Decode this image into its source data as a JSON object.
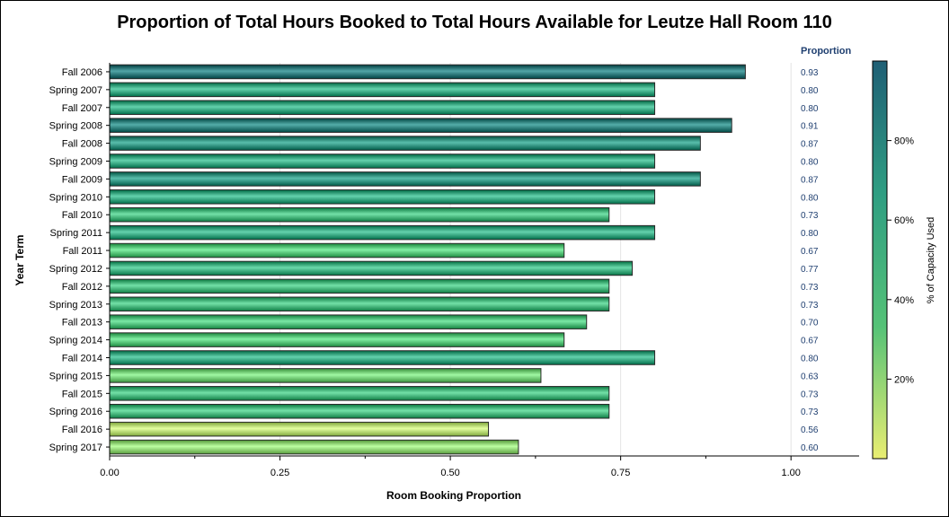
{
  "chart_data": {
    "type": "bar",
    "orientation": "horizontal",
    "title": "Proportion of Total Hours Booked to Total Hours Available for Leutze Hall Room 110",
    "xlabel": "Room Booking Proportion",
    "ylabel": "Year Term",
    "xlim": [
      0,
      1.1
    ],
    "xticks": [
      0,
      0.25,
      0.5,
      0.75,
      1.0
    ],
    "xtick_labels": [
      "0.00",
      "0.25",
      "0.50",
      "0.75",
      "1.00"
    ],
    "value_column_header": "Proportion",
    "colorbar_label": "% of Capacity Used",
    "colorbar_ticks": [
      "20%",
      "40%",
      "60%",
      "80%"
    ],
    "colorbar_tick_values": [
      20,
      40,
      60,
      80
    ],
    "colorbar_range": [
      0,
      100
    ],
    "colorbar_colors": [
      "#e9ee72",
      "#55c277",
      "#2f9e82",
      "#1f5f75"
    ],
    "grid": "vertical",
    "categories": [
      "Fall 2006",
      "Spring 2007",
      "Fall 2007",
      "Spring 2008",
      "Fall 2008",
      "Spring 2009",
      "Fall 2009",
      "Spring 2010",
      "Fall 2010",
      "Spring 2011",
      "Fall 2011",
      "Spring 2012",
      "Fall 2012",
      "Spring 2013",
      "Fall 2013",
      "Spring 2014",
      "Fall 2014",
      "Spring 2015",
      "Fall 2015",
      "Spring 2016",
      "Fall 2016",
      "Spring 2017"
    ],
    "values": [
      0.933,
      0.8,
      0.8,
      0.913,
      0.867,
      0.8,
      0.867,
      0.8,
      0.733,
      0.8,
      0.667,
      0.767,
      0.733,
      0.733,
      0.7,
      0.667,
      0.8,
      0.633,
      0.733,
      0.733,
      0.556,
      0.6
    ],
    "value_labels": [
      "0.93",
      "0.80",
      "0.80",
      "0.91",
      "0.87",
      "0.80",
      "0.87",
      "0.80",
      "0.73",
      "0.80",
      "0.67",
      "0.77",
      "0.73",
      "0.73",
      "0.70",
      "0.67",
      "0.80",
      "0.63",
      "0.73",
      "0.73",
      "0.56",
      "0.60"
    ]
  }
}
